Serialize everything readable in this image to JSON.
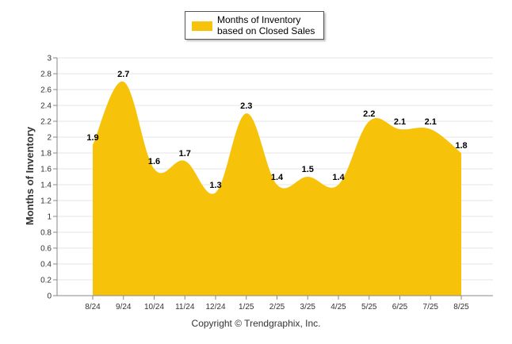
{
  "legend": {
    "label": "Months of Inventory based on Closed Sales"
  },
  "footer": {
    "copyright": "Copyright © Trendgraphix, Inc."
  },
  "colors": {
    "series": "#f7c20a",
    "grid": "#e6e6e6",
    "axis": "#333333"
  },
  "chart_data": {
    "type": "area",
    "title": "",
    "xlabel": "",
    "ylabel": "Months of Inventory",
    "ylim": [
      0,
      3
    ],
    "yticks": [
      "0",
      "0.2",
      "0.4",
      "0.6",
      "0.8",
      "1",
      "1.2",
      "1.4",
      "1.6",
      "1.8",
      "2",
      "2.2",
      "2.4",
      "2.6",
      "2.8",
      "3"
    ],
    "grid": true,
    "legend_position": "top-center",
    "categories": [
      "8/24",
      "9/24",
      "10/24",
      "11/24",
      "12/24",
      "1/25",
      "2/25",
      "3/25",
      "4/25",
      "5/25",
      "6/25",
      "7/25",
      "8/25"
    ],
    "series": [
      {
        "name": "Months of Inventory based on Closed Sales",
        "values": [
          1.9,
          2.7,
          1.6,
          1.7,
          1.3,
          2.3,
          1.4,
          1.5,
          1.4,
          2.2,
          2.1,
          2.1,
          1.8
        ],
        "labels": [
          "1.9",
          "2.7",
          "1.6",
          "1.7",
          "1.3",
          "2.3",
          "1.4",
          "1.5",
          "1.4",
          "2.2",
          "2.1",
          "2.1",
          "1.8"
        ]
      }
    ]
  }
}
